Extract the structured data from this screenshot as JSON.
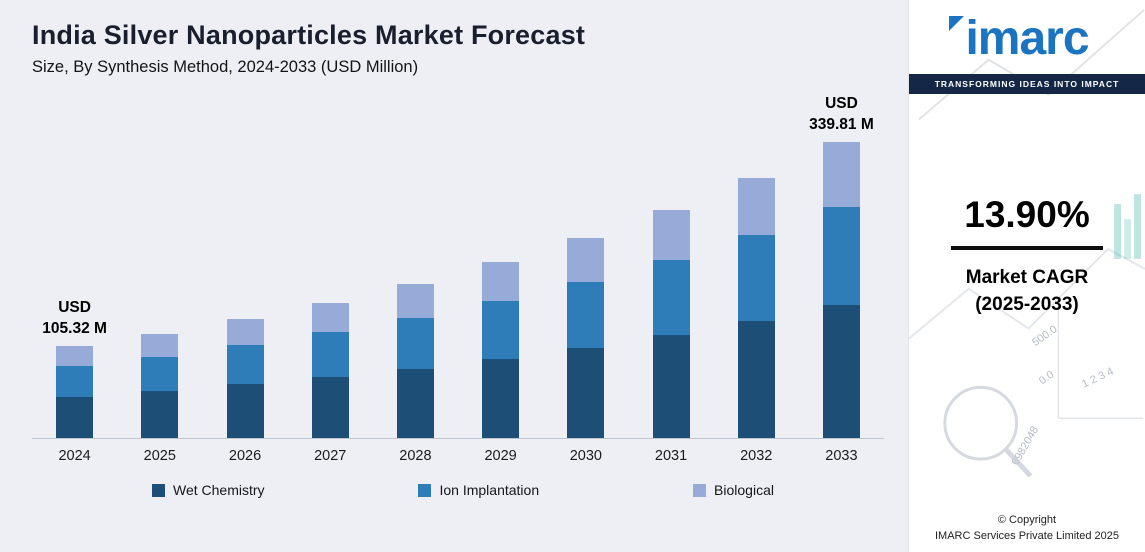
{
  "header": {
    "title": "India Silver Nanoparticles Market Forecast",
    "subtitle": "Size, By Synthesis Method, 2024-2033 (USD Million)"
  },
  "chart_data": {
    "type": "bar",
    "stacked": true,
    "title": "India Silver Nanoparticles Market Forecast",
    "xlabel": "",
    "ylabel": "USD Million",
    "ylim": [
      0,
      360
    ],
    "grid": false,
    "legend_position": "bottom",
    "categories": [
      "2024",
      "2025",
      "2026",
      "2027",
      "2028",
      "2029",
      "2030",
      "2031",
      "2032",
      "2033"
    ],
    "series": [
      {
        "name": "Wet Chemistry",
        "color": "#1d4f76",
        "values": [
          47.39,
          53.98,
          61.49,
          70.03,
          79.77,
          90.86,
          103.48,
          117.87,
          134.25,
          152.91
        ]
      },
      {
        "name": "Ion Implantation",
        "color": "#2e7cb8",
        "values": [
          34.76,
          39.59,
          45.09,
          51.36,
          58.5,
          66.63,
          75.89,
          86.44,
          98.45,
          112.14
        ]
      },
      {
        "name": "Biological",
        "color": "#97abd8",
        "values": [
          23.17,
          26.39,
          30.06,
          34.24,
          39.0,
          44.42,
          50.59,
          57.62,
          65.63,
          74.76
        ]
      }
    ],
    "totals": [
      105.32,
      119.96,
      136.64,
      155.63,
      177.26,
      201.9,
      229.96,
      261.93,
      298.34,
      339.81
    ],
    "annotations": [
      {
        "index": 0,
        "lines": [
          "USD",
          "105.32 M"
        ]
      },
      {
        "index": 9,
        "lines": [
          "USD",
          "339.81 M"
        ]
      }
    ]
  },
  "sidebar": {
    "logo_text": "imarc",
    "tagline": "TRANSFORMING IDEAS INTO IMPACT",
    "cagr_value": "13.90%",
    "cagr_label_line1": "Market CAGR",
    "cagr_label_line2": "(2025-2033)",
    "copyright_line1": "© Copyright",
    "copyright_line2": "IMARC Services Private Limited 2025",
    "watermarks": [
      "500.0",
      "0.0",
      "1 2 3 4",
      "6982048"
    ]
  },
  "colors": {
    "chart_background": "#edeff5",
    "wet_chemistry": "#1d4f76",
    "ion_implantation": "#2e7cb8",
    "biological": "#97abd8",
    "brand_blue": "#1b74c0",
    "tagline_navy": "#152747"
  }
}
